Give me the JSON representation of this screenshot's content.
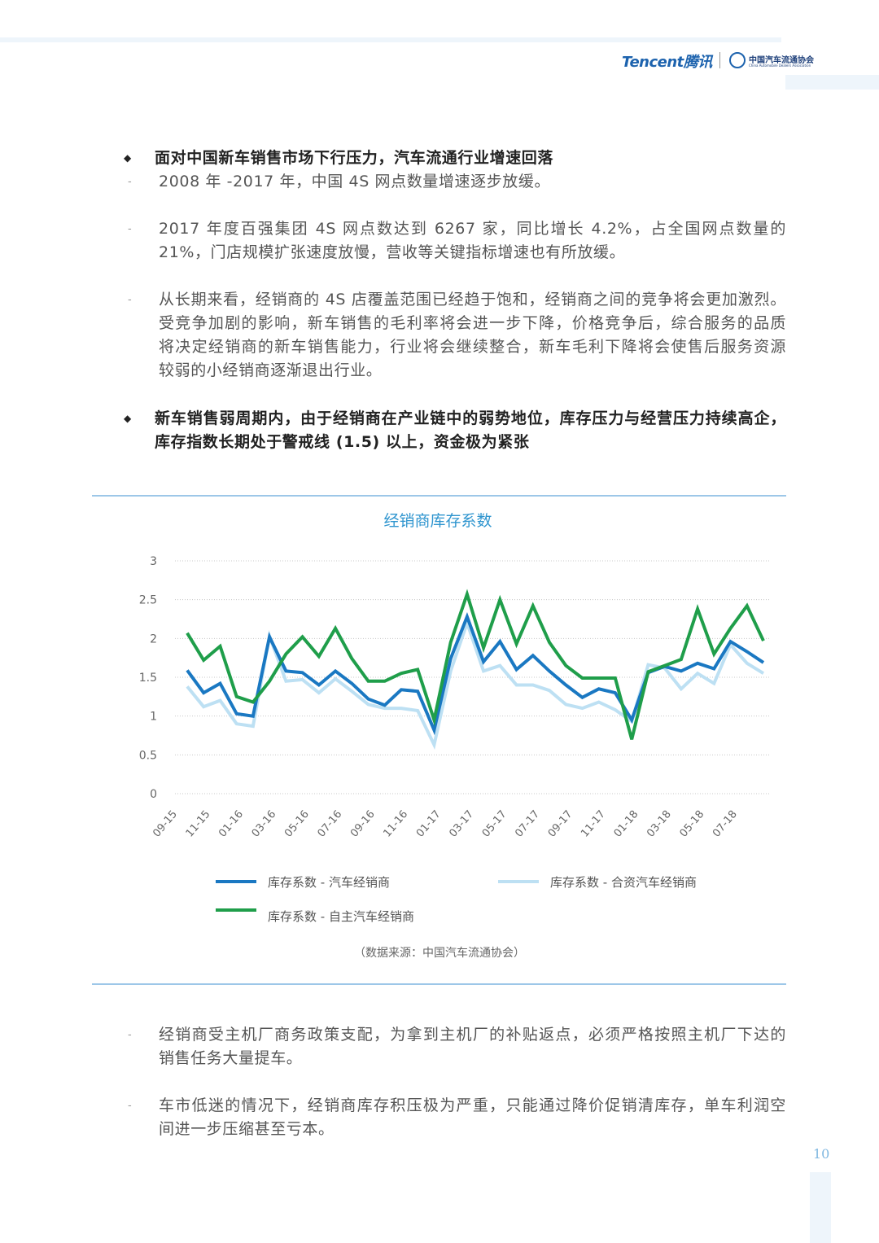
{
  "header": {
    "brand": "Tencent腾讯",
    "association": "中国汽车流通协会",
    "association_en": "China Automobile Dealers Association"
  },
  "blocks": [
    {
      "kind": "heading",
      "lines": [
        "面对中国新车销售市场下行压力，汽车流通行业增速回落"
      ]
    },
    {
      "kind": "item",
      "lines": [
        "2008 年 -2017 年，中国 4S 网点数量增速逐步放缓。"
      ]
    },
    {
      "kind": "item",
      "lines": [
        "2017 年度百强集团 4S 网点数达到 6267 家，同比增长 4.2%，占全国网点数量的",
        "21%，门店规模扩张速度放慢，营收等关键指标增速也有所放缓。"
      ]
    },
    {
      "kind": "item",
      "lines": [
        "从长期来看，经销商的 4S 店覆盖范围已经趋于饱和，经销商之间的竞争将会更加激烈。",
        "受竞争加剧的影响，新车销售的毛利率将会进一步下降，价格竞争后，综合服务的品质",
        "将决定经销商的新车销售能力，行业将会继续整合，新车毛利下降将会使售后服务资源",
        "较弱的小经销商逐渐退出行业。"
      ]
    },
    {
      "kind": "heading",
      "lines": [
        "新车销售弱周期内，由于经销商在产业链中的弱势地位，库存压力与经营压力持续高企，",
        "库存指数长期处于警戒线 (1.5) 以上，资金极为紧张"
      ]
    },
    {
      "kind": "item",
      "lines": [
        "经销商受主机厂商务政策支配，为拿到主机厂的补贴返点，必须严格按照主机厂下达的",
        "销售任务大量提车。"
      ]
    },
    {
      "kind": "item",
      "lines": [
        "车市低迷的情况下，经销商库存积压极为严重，只能通过降价促销清库存，单车利润空",
        "间进一步压缩甚至亏本。"
      ]
    }
  ],
  "chart_data": {
    "type": "line",
    "title": "经销商库存系数",
    "categories": [
      "09-15",
      null,
      "11-15",
      null,
      "01-16",
      null,
      "03-16",
      null,
      "05-16",
      null,
      "07-16",
      null,
      "09-16",
      null,
      "11-16",
      null,
      "01-17",
      null,
      "03-17",
      null,
      "05-17",
      null,
      "07-17",
      null,
      "09-17",
      null,
      "11-17",
      null,
      "01-18",
      null,
      "03-18",
      null,
      "05-18",
      null,
      "07-18",
      null
    ],
    "series": [
      {
        "name": "库存系数 - 汽车经销商",
        "color": "#1a78c2",
        "values": [
          1.59,
          1.3,
          1.42,
          1.03,
          1.0,
          2.02,
          1.58,
          1.56,
          1.4,
          1.58,
          1.42,
          1.22,
          1.14,
          1.34,
          1.32,
          0.82,
          1.74,
          2.28,
          1.7,
          1.96,
          1.6,
          1.78,
          1.58,
          1.4,
          1.24,
          1.35,
          1.3,
          0.95,
          1.56,
          1.64,
          1.58,
          1.68,
          1.61,
          1.96,
          1.83,
          1.69
        ]
      },
      {
        "name": "库存系数 - 合资汽车经销商",
        "color": "#bde0f3",
        "values": [
          1.38,
          1.12,
          1.2,
          0.9,
          0.87,
          2.03,
          1.45,
          1.47,
          1.3,
          1.48,
          1.32,
          1.15,
          1.1,
          1.1,
          1.07,
          0.63,
          1.58,
          2.2,
          1.58,
          1.65,
          1.4,
          1.4,
          1.33,
          1.15,
          1.1,
          1.18,
          1.08,
          0.93,
          1.66,
          1.62,
          1.35,
          1.55,
          1.42,
          1.92,
          1.68,
          1.55
        ]
      },
      {
        "name": "库存系数 - 自主汽车经销商",
        "color": "#1f9e4a",
        "values": [
          2.07,
          1.72,
          1.9,
          1.25,
          1.18,
          1.45,
          1.8,
          2.02,
          1.77,
          2.13,
          1.74,
          1.45,
          1.45,
          1.55,
          1.6,
          0.95,
          1.95,
          2.57,
          1.88,
          2.5,
          1.93,
          2.42,
          1.95,
          1.65,
          1.49,
          1.49,
          1.49,
          0.7,
          1.57,
          1.65,
          1.73,
          2.38,
          1.8,
          2.13,
          2.42,
          1.97
        ]
      }
    ],
    "ylim": [
      0,
      3
    ],
    "yticks": [
      0,
      0.5,
      1,
      1.5,
      2,
      2.5,
      3
    ],
    "grid": true
  },
  "source": "（数据来源：中国汽车流通协会）",
  "page_number": 10
}
